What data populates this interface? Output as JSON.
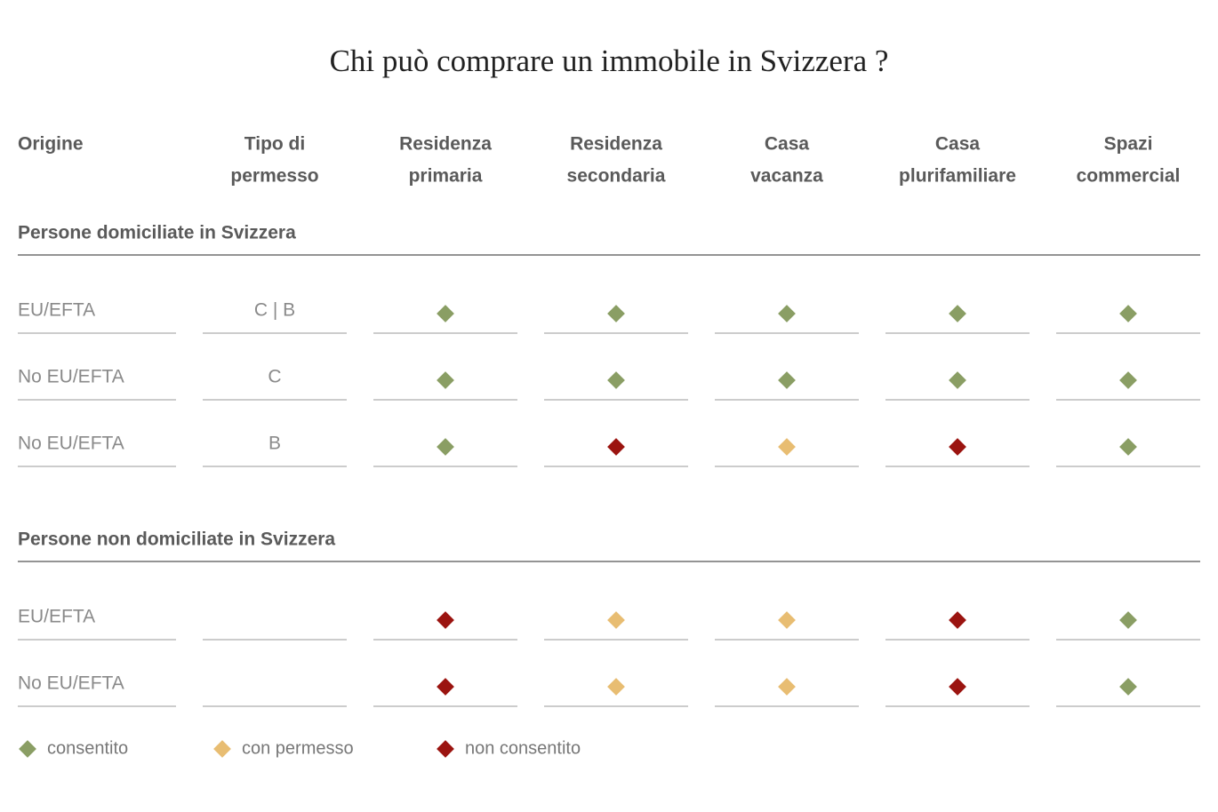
{
  "title": "Chi può comprare un immobile in Svizzera ?",
  "columns": [
    [
      "Origine"
    ],
    [
      "Tipo di",
      "permesso"
    ],
    [
      "Residenza",
      "primaria"
    ],
    [
      "Residenza",
      "secondaria"
    ],
    [
      "Casa",
      "vacanza"
    ],
    [
      "Casa",
      "plurifamiliare"
    ],
    [
      "Spazi",
      "commercial"
    ]
  ],
  "sections": [
    {
      "label": "Persone domiciliate in Svizzera",
      "rows": [
        {
          "origin": "EU/EFTA",
          "permit": "C | B",
          "cells": [
            0,
            0,
            0,
            0,
            0
          ]
        },
        {
          "origin": "No EU/EFTA",
          "permit": "C",
          "cells": [
            0,
            0,
            0,
            0,
            0
          ]
        },
        {
          "origin": "No EU/EFTA",
          "permit": "B",
          "cells": [
            0,
            2,
            1,
            2,
            0
          ]
        }
      ]
    },
    {
      "label": "Persone non domiciliate in Svizzera",
      "rows": [
        {
          "origin": "EU/EFTA",
          "permit": null,
          "cells": [
            2,
            1,
            1,
            2,
            0
          ]
        },
        {
          "origin": "No EU/EFTA",
          "permit": null,
          "cells": [
            2,
            1,
            1,
            2,
            0
          ]
        }
      ]
    }
  ],
  "legend": [
    {
      "label": "consentito",
      "color": "#8a9e64"
    },
    {
      "label": "con permesso",
      "color": "#e8bd72"
    },
    {
      "label": "non consentito",
      "color": "#9b1410"
    }
  ]
}
